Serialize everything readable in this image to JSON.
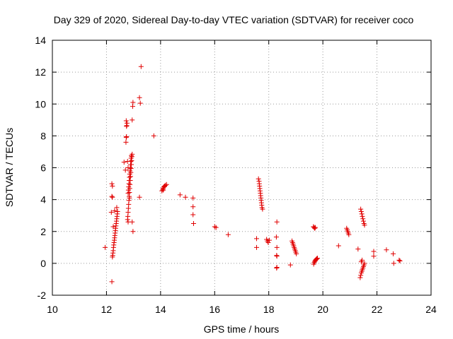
{
  "chart_data": {
    "type": "scatter",
    "title": "Day 329 of 2020, Sidereal Day-to-day VTEC variation (SDTVAR) for receiver coco",
    "xlabel": "GPS time / hours",
    "ylabel": "SDTVAR / TECUs",
    "xlim": [
      10,
      24
    ],
    "ylim": [
      -2,
      14
    ],
    "xticks": [
      10,
      12,
      14,
      16,
      18,
      20,
      22,
      24
    ],
    "yticks": [
      -2,
      0,
      2,
      4,
      6,
      8,
      10,
      12,
      14
    ],
    "xtick_labels": [
      "10",
      "12",
      "14",
      "16",
      "18",
      "20",
      "22",
      "24"
    ],
    "ytick_labels": [
      "-2",
      "0",
      "2",
      "4",
      "6",
      "8",
      "10",
      "12",
      "14"
    ],
    "grid": true,
    "marker": "+",
    "color": "#e00000",
    "series": [
      {
        "name": "SDTVAR",
        "points": [
          [
            11.95,
            1.0
          ],
          [
            12.2,
            -1.15
          ],
          [
            12.18,
            3.2
          ],
          [
            12.2,
            4.2
          ],
          [
            12.22,
            4.15
          ],
          [
            12.2,
            5.0
          ],
          [
            12.22,
            4.85
          ],
          [
            12.25,
            2.3
          ],
          [
            12.3,
            3.3
          ],
          [
            12.38,
            3.5
          ],
          [
            12.22,
            0.4
          ],
          [
            12.23,
            0.5
          ],
          [
            12.24,
            0.65
          ],
          [
            12.25,
            0.8
          ],
          [
            12.26,
            1.0
          ],
          [
            12.27,
            1.15
          ],
          [
            12.28,
            1.3
          ],
          [
            12.29,
            1.45
          ],
          [
            12.3,
            1.6
          ],
          [
            12.31,
            1.75
          ],
          [
            12.32,
            1.9
          ],
          [
            12.33,
            2.05
          ],
          [
            12.34,
            2.2
          ],
          [
            12.35,
            2.35
          ],
          [
            12.36,
            2.5
          ],
          [
            12.37,
            2.65
          ],
          [
            12.38,
            2.8
          ],
          [
            12.39,
            2.95
          ],
          [
            12.4,
            3.1
          ],
          [
            12.41,
            3.25
          ],
          [
            12.65,
            6.35
          ],
          [
            12.7,
            5.85
          ],
          [
            12.72,
            7.6
          ],
          [
            12.73,
            7.9
          ],
          [
            12.74,
            7.95
          ],
          [
            12.74,
            8.6
          ],
          [
            12.75,
            8.65
          ],
          [
            12.73,
            8.95
          ],
          [
            12.76,
            8.8
          ],
          [
            12.78,
            6.4
          ],
          [
            12.8,
            6.0
          ],
          [
            12.85,
            4.1
          ],
          [
            12.8,
            2.6
          ],
          [
            12.95,
            2.6
          ],
          [
            12.98,
            2.0
          ],
          [
            12.95,
            9.0
          ],
          [
            12.97,
            9.85
          ],
          [
            12.98,
            10.1
          ],
          [
            13.22,
            10.4
          ],
          [
            13.25,
            10.05
          ],
          [
            13.28,
            12.35
          ],
          [
            13.22,
            4.15
          ],
          [
            13.75,
            8.0
          ],
          [
            12.78,
            2.75
          ],
          [
            12.79,
            2.95
          ],
          [
            12.8,
            3.2
          ],
          [
            12.81,
            3.45
          ],
          [
            12.82,
            3.7
          ],
          [
            12.83,
            3.95
          ],
          [
            12.84,
            4.2
          ],
          [
            12.85,
            4.45
          ],
          [
            12.86,
            4.7
          ],
          [
            12.87,
            4.95
          ],
          [
            12.88,
            5.2
          ],
          [
            12.89,
            5.45
          ],
          [
            12.9,
            5.7
          ],
          [
            12.91,
            5.95
          ],
          [
            12.92,
            6.2
          ],
          [
            12.93,
            6.45
          ],
          [
            12.94,
            6.7
          ],
          [
            12.95,
            6.85
          ],
          [
            12.8,
            4.4
          ],
          [
            12.81,
            4.6
          ],
          [
            12.82,
            4.8
          ],
          [
            12.83,
            5.0
          ],
          [
            12.84,
            5.2
          ],
          [
            12.85,
            5.4
          ],
          [
            12.86,
            5.6
          ],
          [
            12.87,
            5.8
          ],
          [
            12.88,
            6.0
          ],
          [
            12.89,
            6.2
          ],
          [
            12.9,
            6.4
          ],
          [
            12.91,
            6.6
          ],
          [
            12.92,
            6.75
          ],
          [
            14.05,
            4.55
          ],
          [
            14.08,
            4.65
          ],
          [
            14.1,
            4.72
          ],
          [
            14.12,
            4.8
          ],
          [
            14.15,
            4.85
          ],
          [
            14.18,
            4.9
          ],
          [
            14.22,
            4.95
          ],
          [
            14.1,
            4.6
          ],
          [
            14.72,
            4.3
          ],
          [
            14.92,
            4.15
          ],
          [
            15.2,
            4.1
          ],
          [
            15.2,
            3.55
          ],
          [
            15.2,
            3.05
          ],
          [
            15.22,
            2.5
          ],
          [
            16.0,
            2.3
          ],
          [
            16.05,
            2.25
          ],
          [
            16.5,
            1.8
          ],
          [
            17.55,
            1.55
          ],
          [
            17.55,
            1.0
          ],
          [
            17.62,
            5.3
          ],
          [
            17.64,
            5.15
          ],
          [
            17.65,
            5.0
          ],
          [
            17.66,
            4.85
          ],
          [
            17.67,
            4.7
          ],
          [
            17.68,
            4.55
          ],
          [
            17.69,
            4.4
          ],
          [
            17.7,
            4.25
          ],
          [
            17.71,
            4.1
          ],
          [
            17.72,
            3.95
          ],
          [
            17.73,
            3.8
          ],
          [
            17.74,
            3.65
          ],
          [
            17.75,
            3.5
          ],
          [
            17.77,
            3.4
          ],
          [
            17.92,
            1.5
          ],
          [
            17.95,
            1.4
          ],
          [
            17.98,
            1.3
          ],
          [
            18.02,
            1.45
          ],
          [
            18.3,
            2.6
          ],
          [
            18.28,
            1.65
          ],
          [
            18.3,
            1.0
          ],
          [
            18.29,
            0.5
          ],
          [
            18.3,
            0.45
          ],
          [
            18.29,
            -0.3
          ],
          [
            18.3,
            -0.25
          ],
          [
            18.8,
            -0.1
          ],
          [
            18.86,
            1.4
          ],
          [
            18.88,
            1.3
          ],
          [
            18.9,
            1.2
          ],
          [
            18.92,
            1.1
          ],
          [
            18.94,
            1.0
          ],
          [
            18.96,
            0.9
          ],
          [
            18.98,
            0.8
          ],
          [
            19.0,
            0.7
          ],
          [
            19.02,
            0.6
          ],
          [
            19.65,
            2.3
          ],
          [
            19.68,
            2.25
          ],
          [
            19.7,
            2.2
          ],
          [
            19.72,
            2.25
          ],
          [
            19.66,
            -0.05
          ],
          [
            19.68,
            0.05
          ],
          [
            19.7,
            0.12
          ],
          [
            19.72,
            0.18
          ],
          [
            19.74,
            0.22
          ],
          [
            19.76,
            0.26
          ],
          [
            19.78,
            0.3
          ],
          [
            19.8,
            0.32
          ],
          [
            20.58,
            1.1
          ],
          [
            20.88,
            2.2
          ],
          [
            20.9,
            2.1
          ],
          [
            20.92,
            2.0
          ],
          [
            20.94,
            1.9
          ],
          [
            20.96,
            1.8
          ],
          [
            21.3,
            0.9
          ],
          [
            21.4,
            3.4
          ],
          [
            21.42,
            3.25
          ],
          [
            21.44,
            3.1
          ],
          [
            21.46,
            2.95
          ],
          [
            21.48,
            2.8
          ],
          [
            21.5,
            2.65
          ],
          [
            21.52,
            2.5
          ],
          [
            21.54,
            2.4
          ],
          [
            21.38,
            -0.9
          ],
          [
            21.4,
            -0.75
          ],
          [
            21.42,
            -0.6
          ],
          [
            21.44,
            -0.5
          ],
          [
            21.46,
            -0.4
          ],
          [
            21.48,
            -0.3
          ],
          [
            21.5,
            -0.2
          ],
          [
            21.52,
            -0.1
          ],
          [
            21.54,
            0.0
          ],
          [
            21.42,
            0.1
          ],
          [
            21.45,
            0.2
          ],
          [
            21.88,
            0.75
          ],
          [
            21.88,
            0.45
          ],
          [
            22.35,
            0.85
          ],
          [
            22.6,
            0.6
          ],
          [
            22.62,
            0.0
          ],
          [
            22.82,
            0.2
          ],
          [
            22.85,
            0.15
          ]
        ]
      }
    ]
  }
}
